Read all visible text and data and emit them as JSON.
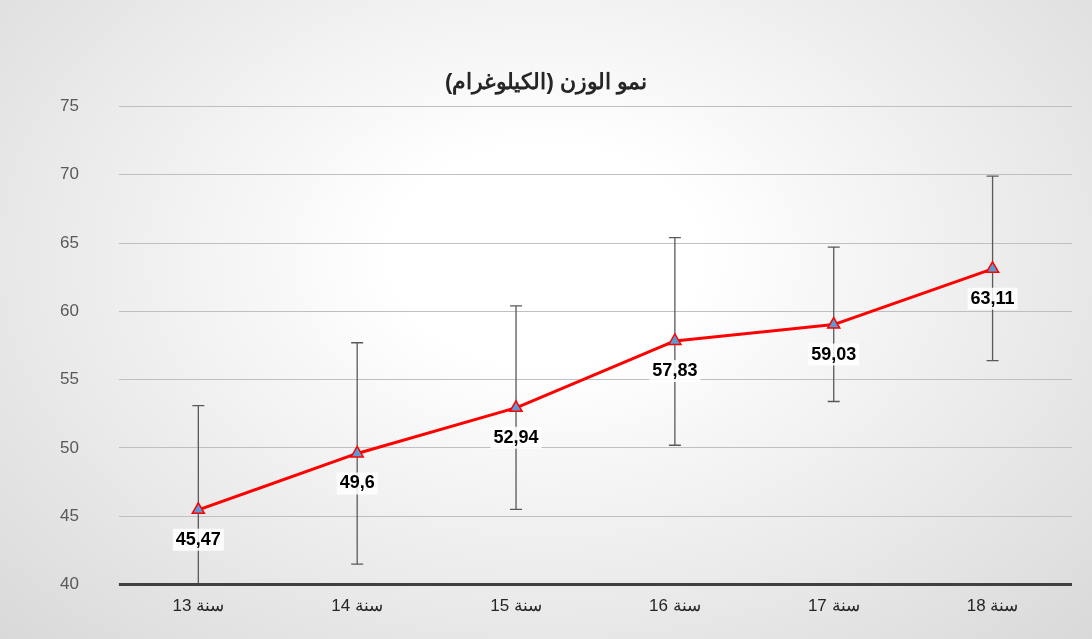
{
  "chart_data": {
    "type": "line",
    "title": "نمو الوزن (الكيلوغرام)",
    "categories": [
      "13 سنة",
      "14 سنة",
      "15 سنة",
      "16 سنة",
      "17 سنة",
      "18 سنة"
    ],
    "series": [
      {
        "color": "#ff0000",
        "values": [
          45.47,
          49.6,
          52.94,
          57.83,
          59.03,
          63.11
        ],
        "errors": [
          [
            40,
            53.1
          ],
          [
            41.5,
            57.7
          ],
          [
            45.5,
            60.4
          ],
          [
            50.2,
            65.4
          ],
          [
            53.4,
            64.7
          ],
          [
            56.4,
            69.9
          ]
        ],
        "value_labels": [
          "45,47",
          "49,6",
          "52,94",
          "57,83",
          "59,03",
          "63,11"
        ]
      }
    ],
    "ylim": [
      40,
      75
    ],
    "yticks": [
      40,
      45,
      50,
      55,
      60,
      65,
      70,
      75
    ],
    "grid": "y",
    "legend": false,
    "marker": "triangle",
    "line_style": "solid"
  }
}
